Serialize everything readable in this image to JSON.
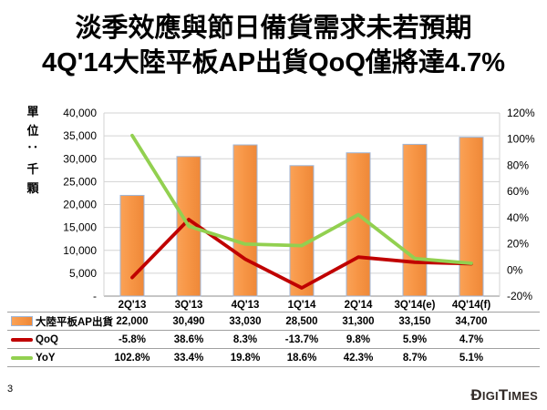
{
  "title": {
    "line1": "淡季效應與節日備貨需求未若預期",
    "line2": "4Q'14大陸平板AP出貨QoQ僅將達4.7%"
  },
  "footer": {
    "page_number": "3",
    "logo_text": "DIGITIMES"
  },
  "chart_data": {
    "type": "combo-bar-line",
    "categories": [
      "2Q'13",
      "3Q'13",
      "4Q'13",
      "1Q'14",
      "2Q'14",
      "3Q'14(e)",
      "4Q'14(f)"
    ],
    "series": [
      {
        "name": "大陸平板AP出貨",
        "type": "bar",
        "axis": "primary",
        "color": "#F79646",
        "border_color": "#9EB6D8",
        "values": [
          22000,
          30490,
          33030,
          28500,
          31300,
          33150,
          34700
        ],
        "labels": [
          "22,000",
          "30,490",
          "33,030",
          "28,500",
          "31,300",
          "33,150",
          "34,700"
        ]
      },
      {
        "name": "QoQ",
        "type": "line",
        "axis": "secondary",
        "color": "#C00000",
        "values": [
          -5.8,
          38.6,
          8.3,
          -13.7,
          9.8,
          5.9,
          4.7
        ],
        "labels": [
          "-5.8%",
          "38.6%",
          "8.3%",
          "-13.7%",
          "9.8%",
          "5.9%",
          "4.7%"
        ]
      },
      {
        "name": "YoY",
        "type": "line",
        "axis": "secondary",
        "color": "#92D050",
        "values": [
          102.8,
          33.4,
          19.8,
          18.6,
          42.3,
          8.7,
          5.1
        ],
        "labels": [
          "102.8%",
          "33.4%",
          "19.8%",
          "18.6%",
          "42.3%",
          "8.7%",
          "5.1%"
        ]
      }
    ],
    "primary_axis": {
      "title": "單位：千顆",
      "min": 0,
      "max": 40000,
      "major_unit": 5000,
      "tick_labels": [
        "40,000",
        "35,000",
        "30,000",
        "25,000",
        "20,000",
        "15,000",
        "10,000",
        "5,000",
        "-"
      ]
    },
    "secondary_axis": {
      "min": -20,
      "max": 120,
      "major_unit": 20,
      "tick_labels": [
        "120%",
        "100%",
        "80%",
        "60%",
        "40%",
        "20%",
        "0%",
        "-20%"
      ]
    },
    "grid": true,
    "gridline_color": "#D3D3D3",
    "axis_line_color": "#8C8C8C",
    "legend_position": "table-left"
  }
}
